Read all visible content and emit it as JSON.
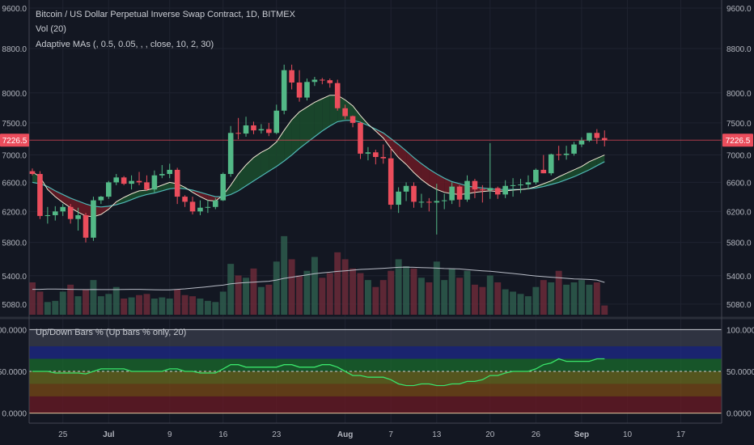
{
  "legend": {
    "title": "Bitcoin / US Dollar Perpetual Inverse Swap Contract, 1D, BITMEX",
    "volume": "Vol (20)",
    "adaptive": "Adaptive MAs (, 0.5, 0.05, , , close, 10, 2, 30)",
    "oscillator": "Up/Down Bars % (Up bars % only, 20)"
  },
  "colors": {
    "background": "#131722",
    "up": "#53b987",
    "down": "#eb4d5c",
    "ma_fast": "#f0e6d2",
    "ma_slow": "#4fb7b5",
    "cloud_bull": "#1b4d2d",
    "cloud_bear": "#6b1a24",
    "vol_up": "#2e5c4c",
    "vol_down": "#6b2a38",
    "vol_ma": "#b8bcc6",
    "osc_line": "#39e36a",
    "price_line": "#eb4d5c"
  },
  "chart_data": [
    {
      "type": "candlestick",
      "title": "Bitcoin / US Dollar Perpetual Inverse Swap Contract, 1D, BITMEX",
      "y_scale": "log",
      "ylim": [
        5000,
        9700
      ],
      "y_ticks": [
        "9600.0",
        "8800.0",
        "8000.0",
        "7500.0",
        "7000.0",
        "6600.0",
        "6200.0",
        "5800.0",
        "5400.0",
        "5080.0"
      ],
      "last_price": "7226.5",
      "x_ticks": [
        "25",
        "Jul",
        "9",
        "16",
        "23",
        "Aug",
        "7",
        "13",
        "20",
        "26",
        "Sep",
        "10",
        "17"
      ],
      "dates": [
        "06-21",
        "06-22",
        "06-23",
        "06-24",
        "06-25",
        "06-26",
        "06-27",
        "06-28",
        "06-29",
        "06-30",
        "07-01",
        "07-02",
        "07-03",
        "07-04",
        "07-05",
        "07-06",
        "07-07",
        "07-08",
        "07-09",
        "07-10",
        "07-11",
        "07-12",
        "07-13",
        "07-14",
        "07-15",
        "07-16",
        "07-17",
        "07-18",
        "07-19",
        "07-20",
        "07-21",
        "07-22",
        "07-23",
        "07-24",
        "07-25",
        "07-26",
        "07-27",
        "07-28",
        "07-29",
        "07-30",
        "07-31",
        "08-01",
        "08-02",
        "08-03",
        "08-04",
        "08-05",
        "08-06",
        "08-07",
        "08-08",
        "08-09",
        "08-10",
        "08-11",
        "08-12",
        "08-13",
        "08-14",
        "08-15",
        "08-16",
        "08-17",
        "08-18",
        "08-19",
        "08-20",
        "08-21",
        "08-22",
        "08-23",
        "08-24",
        "08-25",
        "08-26",
        "08-27",
        "08-28",
        "08-29",
        "08-30",
        "08-31",
        "09-01",
        "09-02",
        "09-03",
        "09-04"
      ],
      "open": [
        6760,
        6720,
        6140,
        6150,
        6200,
        6260,
        6100,
        6150,
        5860,
        6350,
        6400,
        6600,
        6670,
        6580,
        6620,
        6600,
        6500,
        6700,
        6720,
        6780,
        6400,
        6330,
        6200,
        6250,
        6260,
        6350,
        6720,
        7340,
        7330,
        7460,
        7380,
        7400,
        7340,
        7700,
        8400,
        8180,
        7920,
        8190,
        8230,
        8220,
        8170,
        7740,
        7610,
        7500,
        7020,
        7040,
        6970,
        6950,
        6290,
        6470,
        6550,
        6330,
        6330,
        6320,
        6340,
        6350,
        6540,
        6360,
        6620,
        6500,
        6490,
        6520,
        6430,
        6550,
        6560,
        6570,
        6600,
        6780,
        6730,
        7010,
        7000,
        7020,
        7160,
        7220,
        7340,
        7260
      ],
      "high": [
        6800,
        6760,
        6260,
        6270,
        6300,
        6300,
        6250,
        6180,
        6400,
        6410,
        6620,
        6720,
        6690,
        6700,
        6750,
        6700,
        6770,
        6850,
        6870,
        6810,
        6420,
        6400,
        6350,
        6360,
        6380,
        6740,
        7450,
        7580,
        7600,
        7520,
        7480,
        7500,
        7800,
        8500,
        8500,
        8400,
        8250,
        8280,
        8260,
        8250,
        8230,
        7800,
        7620,
        7520,
        7120,
        7080,
        7160,
        7120,
        6530,
        6600,
        6600,
        6440,
        6380,
        6580,
        6440,
        6600,
        6560,
        6700,
        6650,
        6560,
        7180,
        6540,
        6630,
        6660,
        6650,
        6700,
        6800,
        7000,
        7020,
        7140,
        7140,
        7200,
        7270,
        7340,
        7400,
        7380
      ],
      "low": [
        6700,
        6100,
        6040,
        6080,
        6140,
        6040,
        5950,
        5800,
        5820,
        6300,
        6370,
        6560,
        6560,
        6500,
        6560,
        6480,
        6460,
        6660,
        6660,
        6300,
        6260,
        6160,
        6150,
        6180,
        6230,
        6340,
        6680,
        7240,
        7280,
        7320,
        7330,
        7290,
        7320,
        7640,
        8060,
        7850,
        7870,
        8120,
        8150,
        8090,
        7700,
        7560,
        7430,
        6940,
        6920,
        6860,
        6870,
        6230,
        6180,
        6340,
        6250,
        6250,
        6200,
        5900,
        6230,
        6300,
        6260,
        6330,
        6380,
        6320,
        6370,
        6370,
        6380,
        6400,
        6450,
        6500,
        6570,
        6730,
        6700,
        6920,
        6930,
        6990,
        7120,
        7200,
        7170,
        7130
      ],
      "close": [
        6720,
        6140,
        6150,
        6200,
        6260,
        6100,
        6150,
        5860,
        6350,
        6400,
        6600,
        6670,
        6580,
        6620,
        6600,
        6500,
        6700,
        6720,
        6780,
        6400,
        6330,
        6200,
        6250,
        6260,
        6350,
        6720,
        7340,
        7330,
        7460,
        7380,
        7400,
        7340,
        7700,
        8400,
        8180,
        7920,
        8190,
        8230,
        8220,
        8170,
        7740,
        7610,
        7500,
        7020,
        7040,
        6970,
        6950,
        6290,
        6470,
        6550,
        6330,
        6330,
        6320,
        6340,
        6350,
        6540,
        6360,
        6620,
        6500,
        6490,
        6520,
        6430,
        6550,
        6560,
        6570,
        6600,
        6780,
        6730,
        7010,
        7000,
        7020,
        7160,
        7220,
        7340,
        7260,
        7227
      ],
      "volume": [
        28000,
        20000,
        11000,
        12000,
        20000,
        26000,
        16000,
        22000,
        30000,
        16000,
        18000,
        24000,
        14000,
        15000,
        17000,
        18000,
        14000,
        15000,
        14000,
        22000,
        17000,
        16000,
        14000,
        12000,
        11000,
        20000,
        44000,
        34000,
        32000,
        40000,
        24000,
        26000,
        46000,
        68000,
        48000,
        34000,
        38000,
        50000,
        32000,
        36000,
        54000,
        48000,
        40000,
        36000,
        30000,
        24000,
        30000,
        38000,
        48000,
        42000,
        40000,
        32000,
        28000,
        46000,
        30000,
        40000,
        32000,
        38000,
        26000,
        24000,
        34000,
        28000,
        22000,
        20000,
        18000,
        16000,
        24000,
        30000,
        28000,
        38000,
        26000,
        28000,
        30000,
        26000,
        28000,
        8000
      ],
      "vol_ma": [
        22000,
        22000,
        22200,
        22200,
        22100,
        22000,
        21900,
        21800,
        21900,
        21800,
        21800,
        21800,
        21900,
        22000,
        22000,
        21800,
        21600,
        21500,
        21500,
        22000,
        22400,
        23000,
        23600,
        24200,
        25000,
        25600,
        26800,
        27400,
        27800,
        28200,
        28600,
        29000,
        30000,
        31500,
        32500,
        33500,
        34500,
        35500,
        36200,
        36800,
        37500,
        38000,
        38600,
        39200,
        39500,
        39800,
        40200,
        40600,
        41000,
        41200,
        41000,
        40800,
        40600,
        40300,
        40000,
        39800,
        39600,
        39000,
        38500,
        38000,
        37600,
        37000,
        36300,
        35700,
        35000,
        34200,
        33500,
        33000,
        32500,
        32000,
        31500,
        31000,
        30800,
        30500,
        30000,
        28000
      ],
      "ma_fast": [
        6750,
        6680,
        6500,
        6400,
        6320,
        6250,
        6190,
        6140,
        6130,
        6160,
        6230,
        6330,
        6390,
        6440,
        6480,
        6490,
        6520,
        6560,
        6600,
        6580,
        6530,
        6460,
        6400,
        6350,
        6340,
        6420,
        6560,
        6720,
        6850,
        6960,
        7040,
        7100,
        7200,
        7380,
        7550,
        7680,
        7760,
        7840,
        7900,
        7960,
        7960,
        7880,
        7780,
        7620,
        7480,
        7370,
        7260,
        7100,
        6960,
        6860,
        6740,
        6640,
        6560,
        6500,
        6460,
        6440,
        6430,
        6440,
        6460,
        6470,
        6480,
        6470,
        6480,
        6490,
        6500,
        6510,
        6540,
        6580,
        6620,
        6680,
        6730,
        6780,
        6830,
        6900,
        6950,
        7000
      ],
      "ma_slow": [
        6600,
        6580,
        6540,
        6480,
        6430,
        6380,
        6340,
        6300,
        6270,
        6260,
        6270,
        6290,
        6320,
        6360,
        6400,
        6430,
        6450,
        6480,
        6510,
        6520,
        6510,
        6490,
        6460,
        6430,
        6400,
        6400,
        6430,
        6480,
        6550,
        6620,
        6690,
        6760,
        6830,
        6910,
        7000,
        7100,
        7190,
        7280,
        7370,
        7450,
        7520,
        7540,
        7540,
        7510,
        7460,
        7400,
        7340,
        7250,
        7160,
        7060,
        6960,
        6870,
        6790,
        6720,
        6660,
        6610,
        6580,
        6550,
        6530,
        6520,
        6510,
        6500,
        6500,
        6500,
        6500,
        6510,
        6520,
        6540,
        6570,
        6600,
        6640,
        6680,
        6730,
        6780,
        6840,
        6900
      ],
      "oscillator": {
        "ylim": [
          -12,
          110
        ],
        "y_ticks": [
          "100.0000",
          "50.0000",
          "0.0000"
        ],
        "bands": [
          {
            "from": 80,
            "to": 100,
            "color": "#3a3e4c"
          },
          {
            "from": 65,
            "to": 80,
            "color": "#1d2a8a"
          },
          {
            "from": 50,
            "to": 65,
            "color": "#1a6b2c"
          },
          {
            "from": 35,
            "to": 50,
            "color": "#6b6b1e"
          },
          {
            "from": 20,
            "to": 35,
            "color": "#7a4a16"
          },
          {
            "from": 0,
            "to": 20,
            "color": "#6b1a24"
          }
        ],
        "values": [
          50,
          50,
          50,
          48,
          48,
          48,
          48,
          47,
          50,
          53,
          53,
          53,
          53,
          50,
          50,
          50,
          50,
          50,
          53,
          53,
          50,
          50,
          48,
          48,
          48,
          53,
          58,
          58,
          55,
          55,
          55,
          55,
          55,
          58,
          58,
          55,
          55,
          55,
          58,
          58,
          55,
          50,
          45,
          45,
          43,
          43,
          43,
          40,
          35,
          33,
          33,
          35,
          35,
          33,
          33,
          35,
          35,
          38,
          38,
          40,
          45,
          45,
          48,
          50,
          50,
          50,
          53,
          58,
          60,
          65,
          62,
          62,
          62,
          62,
          65,
          65
        ]
      }
    }
  ]
}
